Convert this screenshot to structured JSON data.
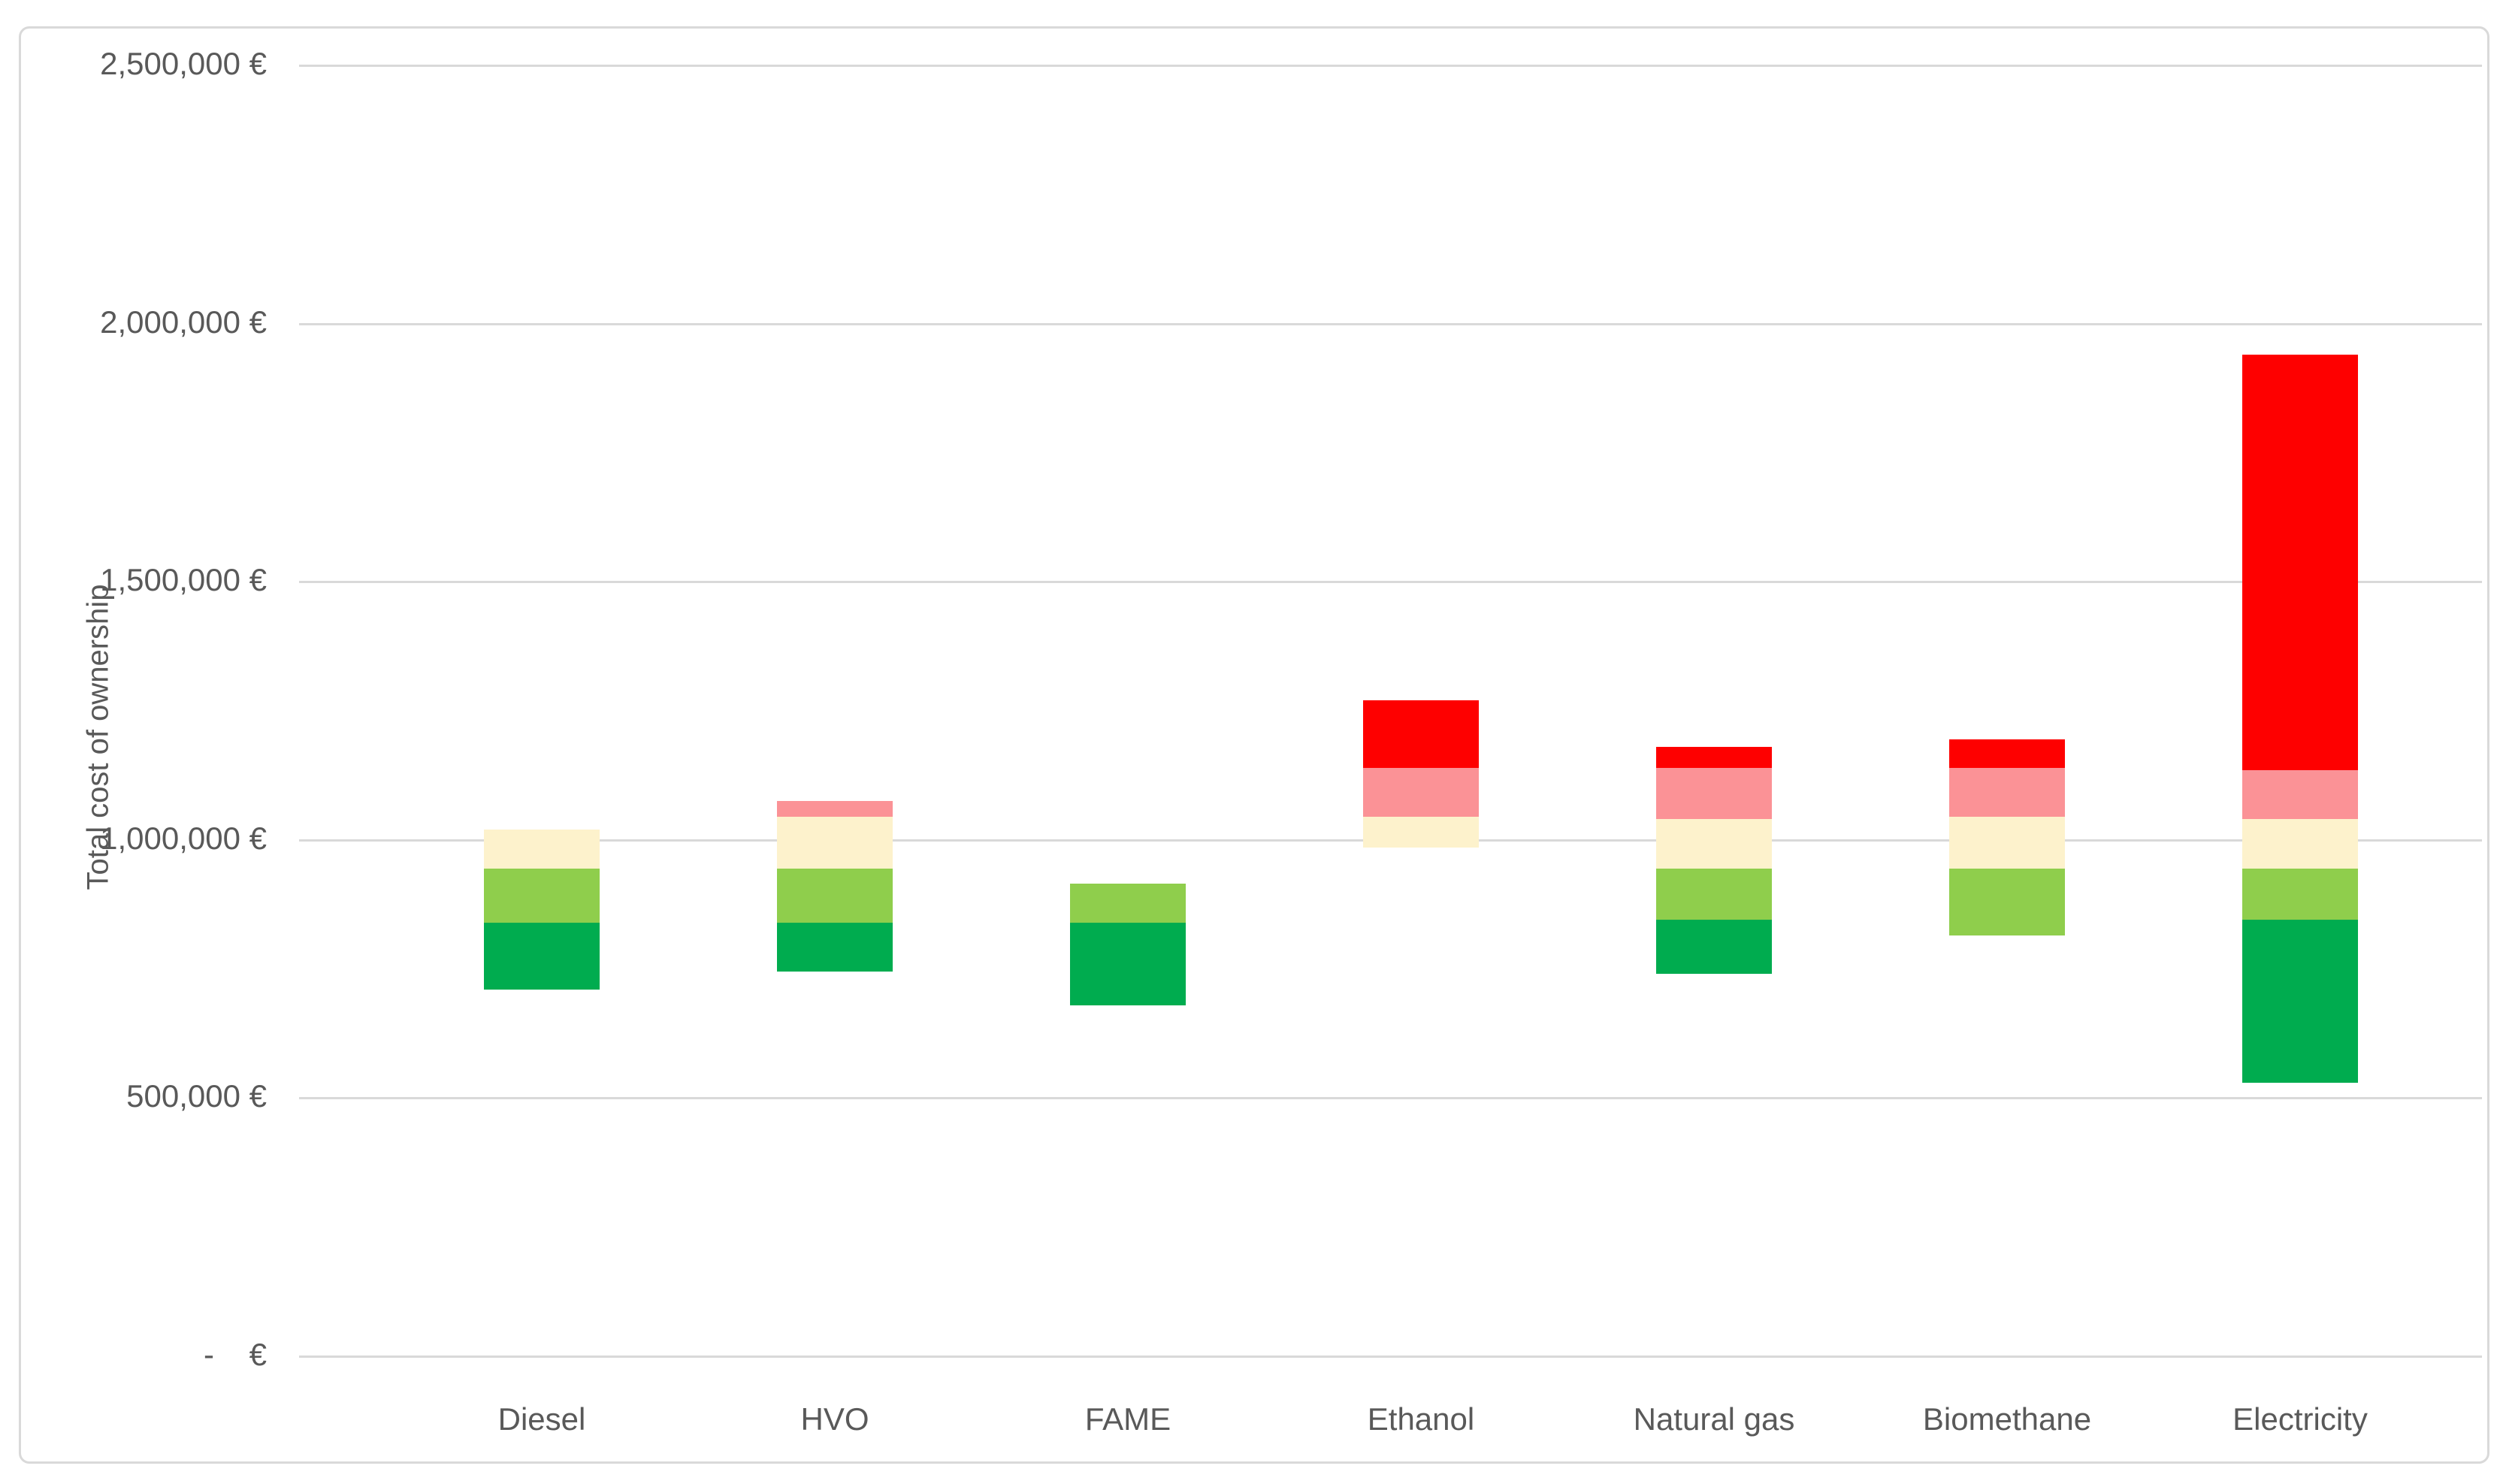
{
  "page": {
    "background": "#FFFFFF",
    "frame_border_color": "#D9D9D9"
  },
  "chart_data": {
    "type": "stacked-floating-bar",
    "title": "",
    "xlabel": "",
    "ylabel": "Total cost of ownership",
    "ylim": [
      0,
      2500000
    ],
    "ytick_step": 500000,
    "grid": "horizontal",
    "legend": "none",
    "gridline_color": "#D9D9D9",
    "text_color": "#595959",
    "palette": {
      "dark_green": "#00AC4F",
      "light_green": "#8FCE4C",
      "cream": "#FDF2CC",
      "pink": "#FB9296",
      "red": "#FE0000"
    },
    "yticks": [
      {
        "value": 0,
        "label": "-    €"
      },
      {
        "value": 500000,
        "label": "500,000 €"
      },
      {
        "value": 1000000,
        "label": "1,000,000 €"
      },
      {
        "value": 1500000,
        "label": "1,500,000 €"
      },
      {
        "value": 2000000,
        "label": "2,000,000 €"
      },
      {
        "value": 2500000,
        "label": "2,500,000 €"
      }
    ],
    "categories": [
      "Diesel",
      "HVO",
      "FAME",
      "Ethanol",
      "Natural gas",
      "Biomethane",
      "Electricity"
    ],
    "bars": [
      {
        "category": "Diesel",
        "total_range": [
          710000,
          1020000
        ],
        "segments": [
          {
            "color": "dark_green",
            "from": 710000,
            "to": 840000
          },
          {
            "color": "light_green",
            "from": 840000,
            "to": 945000
          },
          {
            "color": "cream",
            "from": 945000,
            "to": 1020000
          }
        ]
      },
      {
        "category": "HVO",
        "total_range": [
          745000,
          1075000
        ],
        "segments": [
          {
            "color": "dark_green",
            "from": 745000,
            "to": 840000
          },
          {
            "color": "light_green",
            "from": 840000,
            "to": 945000
          },
          {
            "color": "cream",
            "from": 945000,
            "to": 1045000
          },
          {
            "color": "pink",
            "from": 1045000,
            "to": 1075000
          }
        ]
      },
      {
        "category": "FAME",
        "total_range": [
          680000,
          915000
        ],
        "segments": [
          {
            "color": "dark_green",
            "from": 680000,
            "to": 840000
          },
          {
            "color": "light_green",
            "from": 840000,
            "to": 915000
          }
        ]
      },
      {
        "category": "Ethanol",
        "total_range": [
          985000,
          1270000
        ],
        "segments": [
          {
            "color": "cream",
            "from": 985000,
            "to": 1045000
          },
          {
            "color": "pink",
            "from": 1045000,
            "to": 1140000
          },
          {
            "color": "red",
            "from": 1140000,
            "to": 1270000
          }
        ]
      },
      {
        "category": "Natural gas",
        "total_range": [
          740000,
          1180000
        ],
        "segments": [
          {
            "color": "dark_green",
            "from": 740000,
            "to": 845000
          },
          {
            "color": "light_green",
            "from": 845000,
            "to": 945000
          },
          {
            "color": "cream",
            "from": 945000,
            "to": 1040000
          },
          {
            "color": "pink",
            "from": 1040000,
            "to": 1140000
          },
          {
            "color": "red",
            "from": 1140000,
            "to": 1180000
          }
        ]
      },
      {
        "category": "Biomethane",
        "total_range": [
          815000,
          1195000
        ],
        "segments": [
          {
            "color": "light_green",
            "from": 815000,
            "to": 945000
          },
          {
            "color": "cream",
            "from": 945000,
            "to": 1045000
          },
          {
            "color": "pink",
            "from": 1045000,
            "to": 1140000
          },
          {
            "color": "red",
            "from": 1140000,
            "to": 1195000
          }
        ]
      },
      {
        "category": "Electricity",
        "total_range": [
          530000,
          1940000
        ],
        "segments": [
          {
            "color": "dark_green",
            "from": 530000,
            "to": 845000
          },
          {
            "color": "light_green",
            "from": 845000,
            "to": 945000
          },
          {
            "color": "cream",
            "from": 945000,
            "to": 1040000
          },
          {
            "color": "pink",
            "from": 1040000,
            "to": 1135000
          },
          {
            "color": "red",
            "from": 1135000,
            "to": 1940000
          }
        ]
      }
    ]
  }
}
